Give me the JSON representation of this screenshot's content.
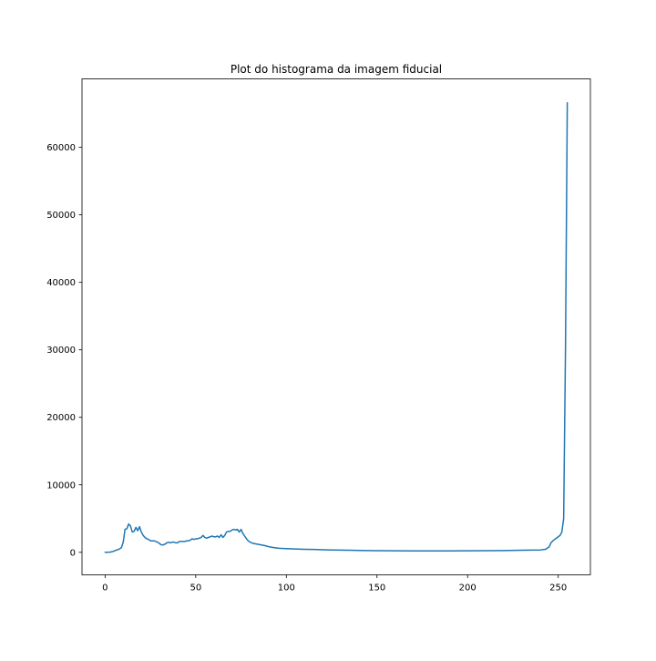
{
  "chart_data": {
    "type": "line",
    "title": "Plot do histograma da imagem fiducial",
    "xlabel": "",
    "ylabel": "",
    "xlim": [
      -12.75,
      267.75
    ],
    "ylim": [
      -3340,
      70150
    ],
    "xticks": [
      0,
      50,
      100,
      150,
      200,
      250
    ],
    "xtick_labels": [
      "0",
      "50",
      "100",
      "150",
      "200",
      "250"
    ],
    "yticks": [
      0,
      10000,
      20000,
      30000,
      40000,
      50000,
      60000
    ],
    "ytick_labels": [
      "0",
      "10000",
      "20000",
      "30000",
      "40000",
      "50000",
      "60000"
    ],
    "grid": false,
    "legend": "none",
    "line_color": "#1f77b4",
    "series": [
      {
        "x": [
          0,
          1,
          2,
          3,
          4,
          5,
          6,
          7,
          8,
          9,
          10,
          11,
          12,
          13,
          14,
          15,
          16,
          17,
          18,
          19,
          20,
          21,
          22,
          23,
          24,
          25,
          26,
          27,
          28,
          29,
          30,
          31,
          32,
          33,
          34,
          35,
          36,
          37,
          38,
          39,
          40,
          41,
          42,
          43,
          44,
          45,
          46,
          47,
          48,
          49,
          50,
          51,
          52,
          53,
          54,
          55,
          56,
          57,
          58,
          59,
          60,
          61,
          62,
          63,
          64,
          65,
          66,
          67,
          68,
          69,
          70,
          71,
          72,
          73,
          74,
          75,
          76,
          77,
          78,
          79,
          80,
          82,
          84,
          86,
          88,
          90,
          93,
          96,
          100,
          105,
          110,
          115,
          120,
          125,
          130,
          135,
          140,
          145,
          150,
          160,
          170,
          180,
          190,
          200,
          210,
          220,
          230,
          235,
          240,
          243,
          245,
          246,
          247,
          248,
          249,
          250,
          251,
          252,
          253,
          254,
          255
        ],
        "y": [
          0,
          10,
          20,
          40,
          100,
          200,
          300,
          400,
          500,
          700,
          1500,
          3400,
          3500,
          4200,
          3900,
          3000,
          3100,
          3700,
          3200,
          3800,
          3000,
          2500,
          2200,
          2000,
          1900,
          1700,
          1700,
          1700,
          1600,
          1500,
          1300,
          1100,
          1100,
          1200,
          1400,
          1500,
          1400,
          1500,
          1500,
          1400,
          1400,
          1600,
          1600,
          1600,
          1600,
          1700,
          1700,
          1800,
          2000,
          1900,
          2000,
          2000,
          2100,
          2200,
          2500,
          2200,
          2100,
          2200,
          2300,
          2400,
          2300,
          2300,
          2400,
          2200,
          2600,
          2200,
          2500,
          3000,
          3100,
          3100,
          3300,
          3400,
          3300,
          3400,
          3000,
          3400,
          2800,
          2400,
          2000,
          1700,
          1500,
          1300,
          1200,
          1100,
          1000,
          850,
          700,
          600,
          550,
          500,
          450,
          420,
          380,
          340,
          320,
          300,
          280,
          260,
          240,
          220,
          210,
          200,
          210,
          220,
          240,
          260,
          300,
          320,
          350,
          450,
          800,
          1400,
          1700,
          1900,
          2100,
          2300,
          2500,
          3000,
          5000,
          30000,
          66600
        ]
      }
    ]
  }
}
